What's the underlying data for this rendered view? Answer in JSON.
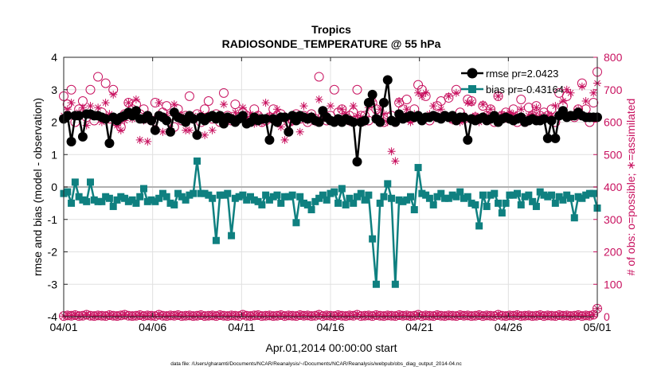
{
  "chart_data": {
    "type": "line",
    "title": "Tropics",
    "subtitle": "RADIOSONDE_TEMPERATURE @ 55 hPa",
    "xlabel": "Apr.01,2014 00:00:00 start",
    "ylabel_left": "rmse and bias (model - observation)",
    "ylabel_right": "# of obs: o=possible; ∗=assimilated",
    "footnote": "data file: /Users/gharamti/Documents/NCAR/Reanalysis/~/Documents/NCAR/Reanalysis/webpub/obs_diag_output_2014-04.nc",
    "x_ticks": [
      "04/01",
      "04/06",
      "04/11",
      "04/16",
      "04/21",
      "04/26",
      "05/01"
    ],
    "y_left_ticks": [
      "-4",
      "-3",
      "-2",
      "-1",
      "0",
      "1",
      "2",
      "3",
      "4"
    ],
    "y_right_ticks": [
      "0",
      "100",
      "200",
      "300",
      "400",
      "500",
      "600",
      "700",
      "800"
    ],
    "xlim": [
      0,
      30
    ],
    "ylim_left": [
      -4,
      4
    ],
    "ylim_right": [
      0,
      800
    ],
    "grid": true,
    "legend_position": "top-right",
    "legend": [
      "rmse pr=2.0423",
      "bias pr=-0.43164"
    ],
    "colors": {
      "rmse": "#000000",
      "bias": "#0f8080",
      "obs": "#c8115f",
      "zero_line": "#b0b0b0",
      "grid": "#e0e0e0"
    },
    "series": [
      {
        "name": "rmse",
        "axis": "left",
        "marker": "circle",
        "values": [
          2.1,
          2.2,
          1.4,
          2.2,
          2.2,
          1.55,
          2.25,
          2.25,
          2.2,
          2.2,
          2.15,
          2.1,
          1.35,
          2.15,
          2.05,
          2.15,
          2.2,
          2.3,
          2.2,
          2.35,
          2.1,
          2.1,
          2.2,
          2.05,
          1.75,
          2.2,
          2.15,
          2.05,
          1.7,
          2.3,
          2.15,
          2.1,
          2.0,
          2.2,
          2.1,
          1.6,
          2.15,
          2.05,
          2.15,
          2.2,
          2.1,
          2.2,
          1.95,
          2.15,
          2.1,
          2.0,
          2.1,
          2.2,
          1.95,
          2.0,
          2.15,
          2.05,
          2.1,
          2.1,
          1.45,
          2.1,
          2.0,
          2.15,
          2.15,
          1.7,
          2.2,
          2.05,
          2.2,
          2.15,
          2.1,
          2.15,
          2.05,
          2.0,
          2.35,
          2.15,
          2.05,
          2.0,
          2.1,
          2.0,
          2.1,
          2.05,
          2.0,
          0.78,
          2.0,
          2.05,
          2.6,
          2.85,
          2.1,
          2.0,
          2.6,
          3.3,
          2.05,
          2.0,
          2.25,
          2.1,
          2.15,
          2.2,
          2.15,
          2.2,
          2.05,
          2.15,
          2.15,
          2.2,
          2.15,
          2.1,
          2.2,
          2.15,
          2.2,
          2.05,
          2.15,
          2.15,
          1.45,
          2.1,
          2.05,
          2.1,
          2.15,
          2.05,
          2.1,
          2.2,
          2.0,
          2.1,
          2.15,
          2.1,
          2.05,
          2.1,
          2.15,
          2.0,
          2.05,
          2.1,
          2.05,
          2.05,
          2.1,
          1.5,
          2.05,
          1.5,
          2.2,
          2.35,
          2.15,
          2.2,
          2.2,
          2.3,
          2.2,
          2.15,
          2.15,
          2.15,
          2.15
        ]
      },
      {
        "name": "bias",
        "axis": "left",
        "marker": "square",
        "values": [
          -0.2,
          -0.15,
          -0.5,
          0.15,
          -0.3,
          -0.4,
          -0.45,
          0.15,
          -0.4,
          -0.45,
          -0.45,
          -0.3,
          -0.35,
          -0.6,
          -0.4,
          -0.3,
          -0.35,
          -0.45,
          -0.4,
          -0.5,
          -0.3,
          -0.05,
          -0.45,
          -0.4,
          -0.45,
          -0.35,
          -0.2,
          -0.3,
          -0.5,
          -0.55,
          -0.2,
          -0.3,
          -0.4,
          -0.25,
          -0.2,
          0.8,
          -0.2,
          -0.2,
          -0.25,
          -0.35,
          -1.65,
          -0.25,
          -0.25,
          -0.2,
          -1.5,
          -0.35,
          -0.3,
          -0.25,
          -0.4,
          -0.3,
          -0.4,
          -0.45,
          -0.55,
          -0.25,
          -0.4,
          -0.3,
          -0.25,
          -0.5,
          -0.3,
          -0.3,
          -0.25,
          -1.1,
          -0.3,
          -0.5,
          -0.55,
          -0.7,
          -0.45,
          -0.35,
          -0.25,
          -0.4,
          -0.2,
          -0.15,
          -0.5,
          -0.05,
          -0.55,
          -0.35,
          -0.5,
          -0.3,
          -0.2,
          -0.4,
          -0.25,
          -1.6,
          -3.0,
          -0.5,
          -0.3,
          0.1,
          -0.35,
          -3.0,
          -0.4,
          -0.45,
          -0.4,
          -0.3,
          -0.7,
          0.6,
          -0.2,
          -0.25,
          -0.35,
          -0.55,
          -0.3,
          -0.2,
          -0.35,
          -0.35,
          -0.25,
          -0.3,
          -0.15,
          -0.35,
          -0.3,
          -0.5,
          -0.55,
          -1.2,
          -0.25,
          -0.6,
          -0.25,
          -0.2,
          -0.5,
          -0.8,
          -0.5,
          -0.25,
          -0.25,
          -0.2,
          -0.55,
          -0.3,
          -0.25,
          -0.45,
          -0.6,
          -0.15,
          -0.25,
          -0.3,
          -0.25,
          -0.5,
          -0.3,
          -0.4,
          -0.25,
          -0.35,
          -0.95,
          -0.3,
          -0.35,
          -0.25,
          -0.2,
          -0.2,
          -0.65
        ]
      },
      {
        "name": "obs_possible",
        "axis": "right",
        "marker": "open-circle",
        "values": [
          680,
          655,
          700,
          600,
          640,
          665,
          615,
          700,
          605,
          740,
          630,
          720,
          610,
          700,
          600,
          585,
          625,
          660,
          640,
          655,
          625,
          640,
          620,
          605,
          660,
          620,
          630,
          650,
          620,
          585,
          640,
          605,
          620,
          680,
          610,
          625,
          600,
          640,
          665,
          610,
          625,
          600,
          690,
          620,
          605,
          655,
          615,
          630,
          620,
          605,
          640,
          620,
          600,
          605,
          615,
          640,
          620,
          625,
          615,
          600,
          605,
          625,
          610,
          620,
          600,
          625,
          610,
          740,
          620,
          605,
          620,
          700,
          630,
          640,
          610,
          620,
          630,
          700,
          620,
          620,
          605,
          660,
          640,
          600,
          600,
          615,
          620,
          600,
          660,
          640,
          670,
          610,
          640,
          715,
          700,
          680,
          605,
          620,
          650,
          665,
          620,
          675,
          610,
          700,
          630,
          610,
          670,
          665,
          615,
          610,
          650,
          620,
          640,
          600,
          680,
          620,
          630,
          620,
          640,
          600,
          670,
          600,
          645,
          620,
          650,
          620,
          630,
          620,
          640,
          600,
          690,
          650,
          680,
          620,
          615,
          640,
          720,
          640,
          600,
          660,
          755
        ]
      },
      {
        "name": "obs_assimilated",
        "axis": "right",
        "marker": "asterisk",
        "values": [
          620,
          640,
          660,
          620,
          630,
          645,
          590,
          650,
          620,
          645,
          600,
          660,
          625,
          685,
          590,
          575,
          605,
          660,
          610,
          670,
          545,
          605,
          540,
          610,
          580,
          660,
          570,
          620,
          580,
          655,
          625,
          620,
          575,
          575,
          620,
          615,
          625,
          560,
          620,
          575,
          615,
          620,
          655,
          615,
          605,
          630,
          610,
          645,
          610,
          625,
          595,
          620,
          600,
          660,
          620,
          605,
          640,
          585,
          545,
          610,
          600,
          620,
          570,
          650,
          605,
          620,
          600,
          670,
          615,
          610,
          650,
          600,
          610,
          640,
          625,
          600,
          650,
          620,
          615,
          600,
          645,
          665,
          620,
          640,
          625,
          600,
          510,
          480,
          665,
          610,
          640,
          600,
          625,
          690,
          680,
          690,
          625,
          650,
          620,
          640,
          615,
          680,
          605,
          690,
          600,
          620,
          660,
          660,
          620,
          600,
          655,
          620,
          640,
          615,
          680,
          625,
          610,
          630,
          625,
          620,
          640,
          605,
          620,
          625,
          645,
          620,
          610,
          620,
          620,
          650,
          625,
          665,
          700,
          690,
          625,
          640,
          710,
          665,
          615,
          690,
          720
        ]
      },
      {
        "name": "obs_possible_bottom",
        "axis": "right",
        "marker": "open-circle",
        "values": [
          2,
          4,
          3,
          5,
          2,
          3,
          6,
          3,
          2,
          4,
          3,
          2,
          5,
          3,
          2,
          4,
          6,
          3,
          2,
          3,
          5,
          2,
          4,
          3,
          2,
          6,
          3,
          2,
          4,
          3,
          5,
          2,
          3,
          4,
          2,
          3,
          5,
          2,
          3,
          4,
          2,
          5,
          3,
          2,
          4,
          3,
          2,
          6,
          3,
          2,
          4,
          5,
          2,
          3,
          4,
          2,
          3,
          5,
          2,
          4,
          3,
          2,
          5,
          3,
          4,
          2,
          3,
          6,
          2,
          4,
          3,
          2,
          5,
          3,
          2,
          4,
          3,
          6,
          2,
          3,
          4,
          2,
          5,
          3,
          2,
          4,
          3,
          2,
          5,
          3,
          4,
          2,
          3,
          6,
          2,
          4,
          3,
          2,
          5,
          3,
          2,
          4,
          3,
          2,
          5,
          3,
          4,
          2,
          3,
          5,
          2,
          4,
          3,
          2,
          6,
          3,
          2,
          4,
          3,
          5,
          2,
          3,
          4,
          2,
          3,
          5,
          2,
          4,
          3,
          2,
          5,
          3,
          4,
          2,
          3,
          5,
          2,
          4,
          3,
          6,
          25
        ]
      },
      {
        "name": "obs_assimilated_bottom",
        "axis": "right",
        "marker": "asterisk",
        "values": [
          2,
          4,
          3,
          5,
          2,
          3,
          6,
          3,
          2,
          4,
          3,
          2,
          5,
          3,
          2,
          4,
          6,
          3,
          2,
          3,
          5,
          2,
          4,
          3,
          2,
          6,
          3,
          2,
          4,
          3,
          5,
          2,
          3,
          4,
          2,
          3,
          5,
          2,
          3,
          4,
          2,
          5,
          3,
          2,
          4,
          3,
          2,
          6,
          3,
          2,
          4,
          5,
          2,
          3,
          4,
          2,
          3,
          5,
          2,
          4,
          3,
          2,
          5,
          3,
          4,
          2,
          3,
          6,
          2,
          4,
          3,
          2,
          5,
          3,
          2,
          4,
          3,
          6,
          2,
          3,
          4,
          2,
          5,
          3,
          2,
          4,
          3,
          2,
          5,
          3,
          4,
          2,
          3,
          6,
          2,
          4,
          3,
          2,
          5,
          3,
          2,
          4,
          3,
          2,
          5,
          3,
          4,
          2,
          3,
          5,
          2,
          4,
          3,
          2,
          6,
          3,
          2,
          4,
          3,
          5,
          2,
          3,
          4,
          2,
          3,
          5,
          2,
          4,
          3,
          2,
          5,
          3,
          4,
          2,
          3,
          5,
          2,
          4,
          3,
          6,
          25
        ]
      }
    ]
  }
}
